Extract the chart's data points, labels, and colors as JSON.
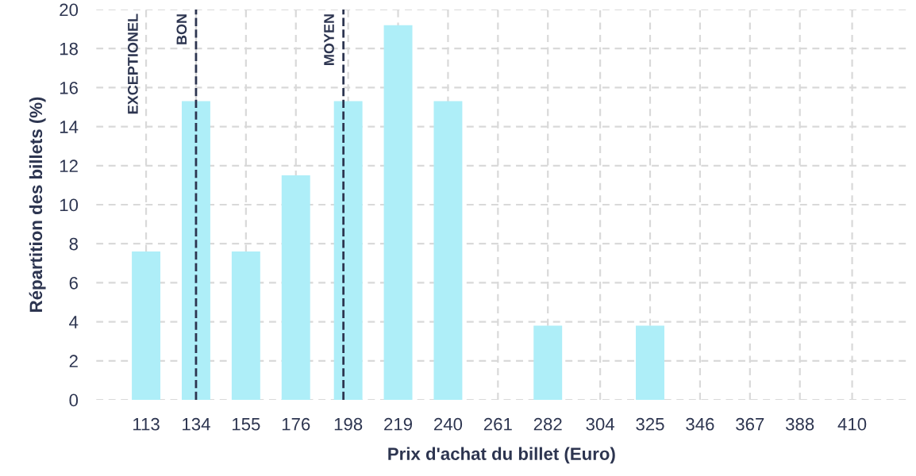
{
  "chart_data": {
    "type": "bar",
    "xlabel": "Prix d'achat du billet (Euro)",
    "ylabel": "Répartition des billets (%)",
    "x": [
      113,
      134,
      155,
      176,
      198,
      219,
      240,
      261,
      282,
      304,
      325,
      346,
      367,
      388,
      410
    ],
    "values": [
      7.6,
      15.3,
      7.6,
      11.5,
      15.3,
      19.2,
      15.3,
      0,
      3.8,
      0,
      3.8,
      0,
      0,
      0,
      0
    ],
    "color": "#aeeef8",
    "xlim": [
      92,
      433
    ],
    "xticks": [
      113,
      134,
      155,
      176,
      198,
      219,
      240,
      261,
      282,
      304,
      325,
      346,
      367,
      388,
      410
    ],
    "ylim": [
      0,
      20
    ],
    "yticks": [
      0,
      2,
      4,
      6,
      8,
      10,
      12,
      14,
      16,
      18,
      20
    ],
    "grid": true,
    "ref_lines": [
      {
        "axis": "x",
        "value": 134,
        "label": "BON",
        "color": "#2d3550",
        "line_style": "dashed"
      },
      {
        "axis": "x",
        "value": 196,
        "label": "MOYEN",
        "color": "#2d3550",
        "line_style": "dashed"
      }
    ],
    "annotations": [
      "EXCEPTIONEL"
    ]
  }
}
